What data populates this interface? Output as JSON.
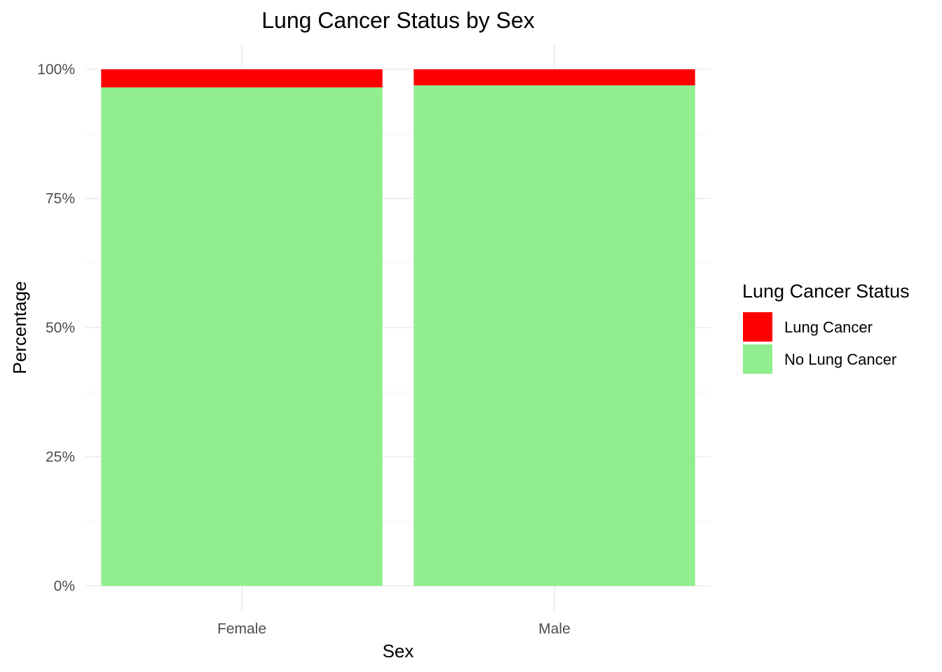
{
  "chart_data": {
    "type": "bar",
    "stacked": true,
    "title": "Lung Cancer Status by Sex",
    "xlabel": "Sex",
    "ylabel": "Percentage",
    "categories": [
      "Female",
      "Male"
    ],
    "series": [
      {
        "name": "No Lung Cancer",
        "color": "#90EE90",
        "values": [
          96.5,
          96.9
        ]
      },
      {
        "name": "Lung Cancer",
        "color": "#FF0000",
        "values": [
          3.5,
          3.1
        ]
      }
    ],
    "ylim": [
      0,
      100
    ],
    "yticks": [
      0,
      25,
      50,
      75,
      100
    ],
    "ytick_labels": [
      "0%",
      "25%",
      "50%",
      "75%",
      "100%"
    ],
    "grid": true,
    "legend": {
      "title": "Lung Cancer Status",
      "placement": "right",
      "entries": [
        {
          "label": "Lung Cancer",
          "color": "#FF0000"
        },
        {
          "label": "No Lung Cancer",
          "color": "#90EE90"
        }
      ]
    }
  }
}
